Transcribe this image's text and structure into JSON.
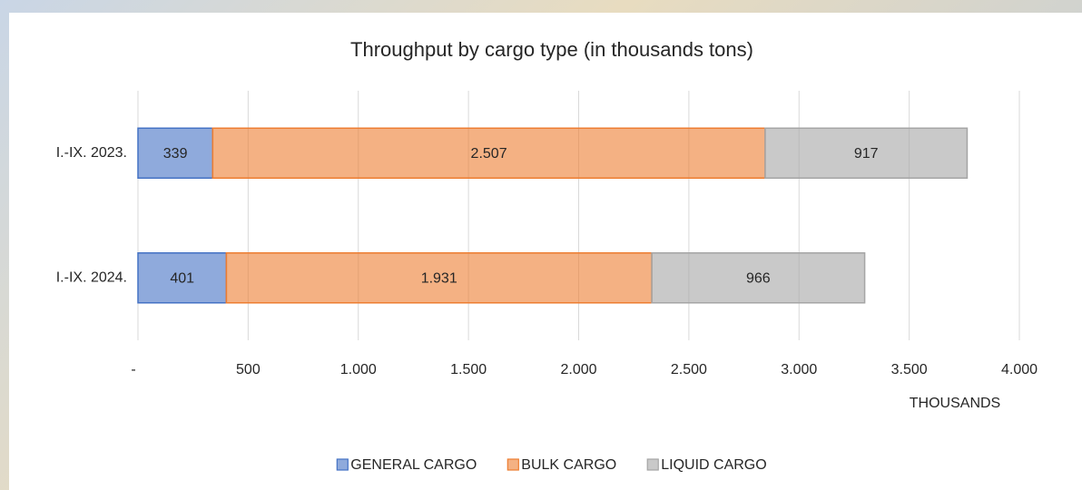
{
  "chart_data": {
    "type": "stacked-bar-horizontal",
    "title": "Throughput by cargo type (in thousands tons)",
    "x_label": "THOUSANDS",
    "categories": [
      "I.-IX. 2023.",
      "I.-IX. 2024."
    ],
    "series": [
      {
        "name": "GENERAL CARGO",
        "color": "#4472c4",
        "values": [
          339,
          401
        ],
        "value_labels": [
          "339",
          "401"
        ]
      },
      {
        "name": "BULK CARGO",
        "color": "#ed7d31",
        "values": [
          2507,
          1931
        ],
        "value_labels": [
          "2.507",
          "1.931"
        ]
      },
      {
        "name": "LIQUID CARGO",
        "color": "#a5a5a5",
        "values": [
          917,
          966
        ],
        "value_labels": [
          "917",
          "966"
        ]
      }
    ],
    "xlim": [
      0,
      4000
    ],
    "xticks": [
      {
        "value": 0,
        "label": "-"
      },
      500,
      {
        "value": 1000,
        "label": "1.000"
      },
      {
        "value": 1500,
        "label": "1.500"
      },
      {
        "value": 2000,
        "label": "2.000"
      },
      {
        "value": 2500,
        "label": "2.500"
      },
      {
        "value": 3000,
        "label": "3.000"
      },
      {
        "value": 3500,
        "label": "3.500"
      },
      {
        "value": 4000,
        "label": "4.000"
      }
    ],
    "grid": true,
    "legend": "bottom"
  }
}
